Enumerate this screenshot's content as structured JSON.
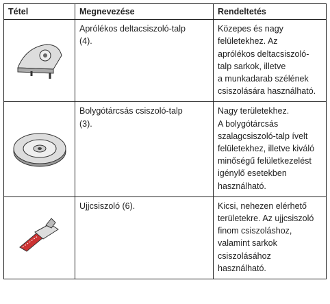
{
  "table": {
    "header": [
      "Tétel",
      "Megnevezése",
      "Rendeltetés"
    ],
    "rows": [
      {
        "name": [
          "Aprólékos deltacsiszoló-talp",
          "(4)."
        ],
        "purpose": [
          "Közepes és nagy",
          "felületekhez. Az",
          "aprólékos deltacsiszoló-",
          "talp sarkok, illetve",
          "a munkadarab szélének",
          "csiszolására használható."
        ]
      },
      {
        "name": [
          "Bolygótárcsás csiszoló-talp",
          "(3)."
        ],
        "purpose": [
          "Nagy területekhez.",
          "A bolygótárcsás",
          "szalagcsiszoló-talp ívelt",
          "felületekhez, illetve kiváló",
          "minőségű felületkezelést",
          "igénylő esetekben",
          "használható."
        ]
      },
      {
        "name": [
          "Ujjcsiszoló (6)."
        ],
        "purpose": [
          "Kicsi, nehezen elérhető",
          "területekre. Az ujjcsiszoló",
          "finom csiszoláshoz,",
          "valamint sarkok",
          "csiszolásához",
          "használható."
        ]
      }
    ]
  }
}
